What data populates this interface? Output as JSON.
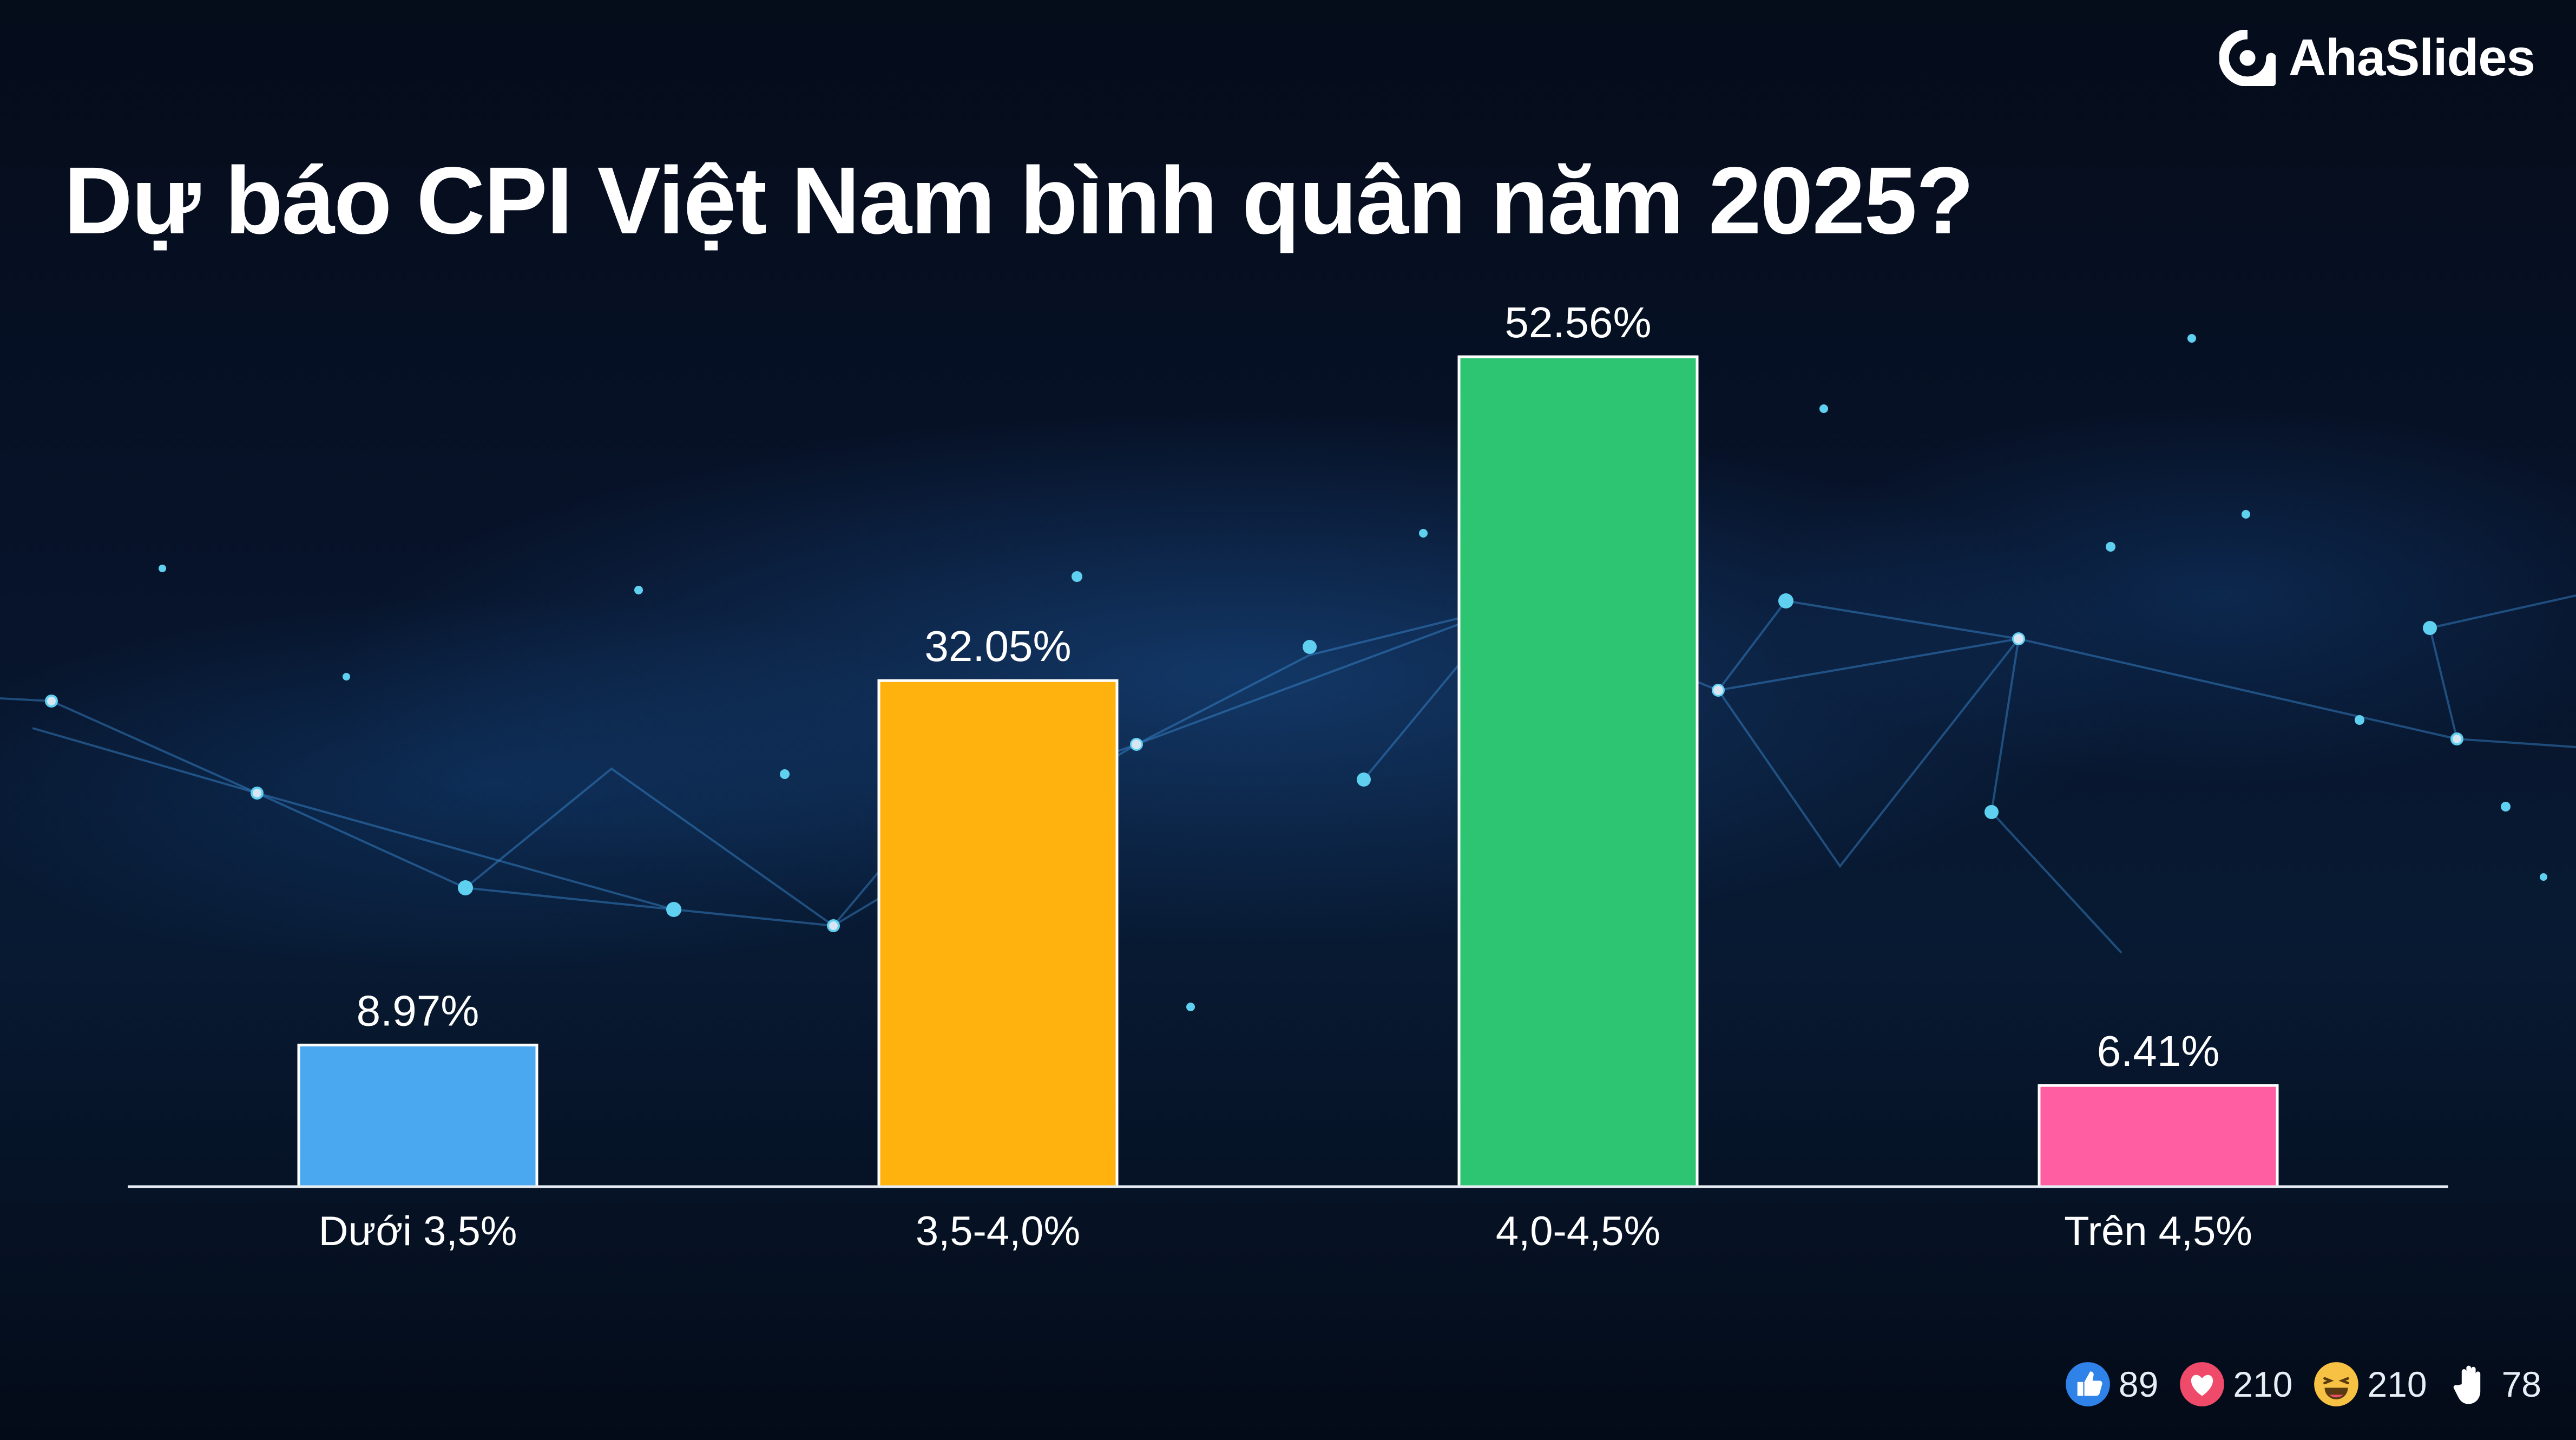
{
  "brand": {
    "name": "AhaSlides"
  },
  "question": "Dự báo CPI Việt Nam bình quân năm 2025?",
  "chart_data": {
    "type": "bar",
    "categories": [
      "Dưới 3,5%",
      "3,5-4,0%",
      "4,0-4,5%",
      "Trên 4,5%"
    ],
    "values": [
      8.97,
      32.05,
      52.56,
      6.41
    ],
    "value_labels": [
      "8.97%",
      "32.05%",
      "52.56%",
      "6.41%"
    ],
    "colors": [
      "#4aa8f0",
      "#ffb10d",
      "#2dc472",
      "#ff5fa2"
    ],
    "ylim": [
      0,
      60
    ],
    "grid": false,
    "legend": "none"
  },
  "reactions": [
    {
      "icon": "thumbs-up-icon",
      "count": "89"
    },
    {
      "icon": "heart-icon",
      "count": "210"
    },
    {
      "icon": "laugh-icon",
      "count": "210"
    },
    {
      "icon": "raised-hand-icon",
      "count": "78"
    }
  ]
}
